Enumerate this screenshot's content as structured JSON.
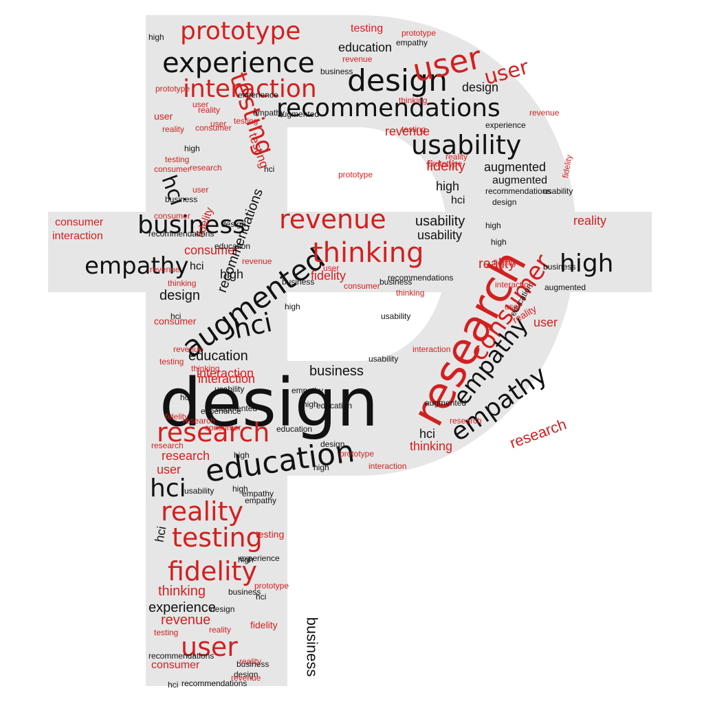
{
  "colors": {
    "shape": "#e6e6e6",
    "red": "#d22020",
    "black": "#111111",
    "background": "#ffffff"
  },
  "words": [
    {
      "text": "design",
      "color": "black"
    },
    {
      "text": "research",
      "color": "red"
    },
    {
      "text": "education",
      "color": "black"
    },
    {
      "text": "recommendations",
      "color": "black"
    },
    {
      "text": "augmented",
      "color": "black"
    },
    {
      "text": "prototype",
      "color": "red"
    },
    {
      "text": "experience",
      "color": "black"
    },
    {
      "text": "interaction",
      "color": "red"
    },
    {
      "text": "design",
      "color": "black"
    },
    {
      "text": "user",
      "color": "red"
    },
    {
      "text": "usability",
      "color": "black"
    },
    {
      "text": "business",
      "color": "black"
    },
    {
      "text": "revenue",
      "color": "red"
    },
    {
      "text": "thinking",
      "color": "red"
    },
    {
      "text": "empathy",
      "color": "black"
    },
    {
      "text": "high",
      "color": "black"
    },
    {
      "text": "consumer",
      "color": "red"
    },
    {
      "text": "empathy",
      "color": "black"
    },
    {
      "text": "hci",
      "color": "black"
    },
    {
      "text": "research",
      "color": "red"
    },
    {
      "text": "reality",
      "color": "red"
    },
    {
      "text": "testing",
      "color": "red"
    },
    {
      "text": "fidelity",
      "color": "red"
    },
    {
      "text": "user",
      "color": "red"
    },
    {
      "text": "hci",
      "color": "black"
    },
    {
      "text": "testing",
      "color": "red"
    },
    {
      "text": "hci",
      "color": "black"
    },
    {
      "text": "education",
      "color": "black"
    },
    {
      "text": "testing",
      "color": "red"
    },
    {
      "text": "augmented",
      "color": "black"
    },
    {
      "text": "fidelity",
      "color": "red"
    },
    {
      "text": "usability",
      "color": "black"
    },
    {
      "text": "research",
      "color": "red"
    },
    {
      "text": "reality",
      "color": "red"
    },
    {
      "text": "consumer",
      "color": "red"
    },
    {
      "text": "thinking",
      "color": "red"
    },
    {
      "text": "experience",
      "color": "black"
    },
    {
      "text": "revenue",
      "color": "red"
    },
    {
      "text": "business",
      "color": "black"
    },
    {
      "text": "interaction",
      "color": "red"
    },
    {
      "text": "consumer",
      "color": "red"
    },
    {
      "text": "interaction",
      "color": "red"
    },
    {
      "text": "usability",
      "color": "black"
    },
    {
      "text": "high",
      "color": "black"
    },
    {
      "text": "reality",
      "color": "red"
    },
    {
      "text": "user",
      "color": "red"
    },
    {
      "text": "design",
      "color": "black"
    },
    {
      "text": "fidelity",
      "color": "red"
    },
    {
      "text": "high",
      "color": "black"
    },
    {
      "text": "design",
      "color": "black"
    },
    {
      "text": "business",
      "color": "black"
    },
    {
      "text": "revenue",
      "color": "red"
    },
    {
      "text": "hci",
      "color": "black"
    },
    {
      "text": "education",
      "color": "black"
    },
    {
      "text": "high",
      "color": "black"
    },
    {
      "text": "hci",
      "color": "black"
    },
    {
      "text": "augmented",
      "color": "black"
    },
    {
      "text": "prototype",
      "color": "red"
    },
    {
      "text": "testing",
      "color": "red"
    },
    {
      "text": "education",
      "color": "black"
    },
    {
      "text": "experience",
      "color": "black"
    },
    {
      "text": "user",
      "color": "red"
    },
    {
      "text": "research",
      "color": "red"
    },
    {
      "text": "high",
      "color": "black"
    },
    {
      "text": "thinking",
      "color": "red"
    },
    {
      "text": "prototype",
      "color": "red"
    },
    {
      "text": "user",
      "color": "red"
    },
    {
      "text": "empathy",
      "color": "black"
    },
    {
      "text": "reality",
      "color": "red"
    },
    {
      "text": "hci",
      "color": "black"
    },
    {
      "text": "hci",
      "color": "black"
    },
    {
      "text": "business",
      "color": "black"
    },
    {
      "text": "interaction",
      "color": "red"
    },
    {
      "text": "fidelity",
      "color": "red"
    },
    {
      "text": "recommendations",
      "color": "black"
    },
    {
      "text": "user",
      "color": "red"
    },
    {
      "text": "consumer",
      "color": "red"
    },
    {
      "text": "business",
      "color": "black"
    },
    {
      "text": "reality",
      "color": "red"
    },
    {
      "text": "testing",
      "color": "red"
    },
    {
      "text": "design",
      "color": "black"
    },
    {
      "text": "hci",
      "color": "black"
    },
    {
      "text": "recommendations",
      "color": "black"
    },
    {
      "text": "high",
      "color": "black"
    },
    {
      "text": "empathy",
      "color": "black"
    },
    {
      "text": "usability",
      "color": "black"
    },
    {
      "text": "consumer",
      "color": "red"
    },
    {
      "text": "thinking",
      "color": "red"
    },
    {
      "text": "revenue",
      "color": "red"
    },
    {
      "text": "fidelity",
      "color": "red"
    },
    {
      "text": "user",
      "color": "red"
    },
    {
      "text": "research",
      "color": "red"
    },
    {
      "text": "high",
      "color": "black"
    },
    {
      "text": "empathy",
      "color": "black"
    },
    {
      "text": "testing",
      "color": "red"
    },
    {
      "text": "prototype",
      "color": "red"
    },
    {
      "text": "interaction",
      "color": "red"
    },
    {
      "text": "augmented",
      "color": "black"
    },
    {
      "text": "high",
      "color": "black"
    },
    {
      "text": "usability",
      "color": "black"
    },
    {
      "text": "business",
      "color": "black"
    },
    {
      "text": "recommendations",
      "color": "black"
    },
    {
      "text": "experience",
      "color": "black"
    },
    {
      "text": "design",
      "color": "black"
    },
    {
      "text": "high",
      "color": "black"
    },
    {
      "text": "testing",
      "color": "red"
    },
    {
      "text": "reality",
      "color": "red"
    },
    {
      "text": "consumer",
      "color": "red"
    },
    {
      "text": "user",
      "color": "red"
    },
    {
      "text": "revenue",
      "color": "red"
    },
    {
      "text": "prototype",
      "color": "red"
    },
    {
      "text": "fidelity",
      "color": "red"
    },
    {
      "text": "usability",
      "color": "black"
    },
    {
      "text": "augmented",
      "color": "black"
    },
    {
      "text": "high",
      "color": "black"
    },
    {
      "text": "hci",
      "color": "black"
    },
    {
      "text": "education",
      "color": "black"
    },
    {
      "text": "consumer",
      "color": "red"
    },
    {
      "text": "research",
      "color": "red"
    },
    {
      "text": "experience",
      "color": "black"
    },
    {
      "text": "revenue",
      "color": "red"
    },
    {
      "text": "testing",
      "color": "red"
    },
    {
      "text": "business",
      "color": "black"
    },
    {
      "text": "recommendations",
      "color": "black"
    },
    {
      "text": "empathy",
      "color": "black"
    },
    {
      "text": "reality",
      "color": "red"
    },
    {
      "text": "hci",
      "color": "black"
    },
    {
      "text": "user",
      "color": "red"
    },
    {
      "text": "design",
      "color": "black"
    },
    {
      "text": "high",
      "color": "black"
    },
    {
      "text": "business",
      "color": "black"
    },
    {
      "text": "consumer",
      "color": "red"
    },
    {
      "text": "revenue",
      "color": "red"
    },
    {
      "text": "fidelity",
      "color": "red"
    },
    {
      "text": "thinking",
      "color": "red"
    },
    {
      "text": "interaction",
      "color": "red"
    },
    {
      "text": "user",
      "color": "red"
    },
    {
      "text": "testing",
      "color": "red"
    },
    {
      "text": "high",
      "color": "black"
    },
    {
      "text": "reality",
      "color": "red"
    },
    {
      "text": "research",
      "color": "red"
    },
    {
      "text": "empathy",
      "color": "black"
    },
    {
      "text": "education",
      "color": "black"
    },
    {
      "text": "hci",
      "color": "black"
    },
    {
      "text": "business",
      "color": "black"
    },
    {
      "text": "recommendations",
      "color": "black"
    },
    {
      "text": "design",
      "color": "black"
    },
    {
      "text": "usability",
      "color": "black"
    },
    {
      "text": "augmented",
      "color": "black"
    },
    {
      "text": "prototype",
      "color": "red"
    },
    {
      "text": "consumer",
      "color": "red"
    },
    {
      "text": "thinking",
      "color": "red"
    },
    {
      "text": "revenue",
      "color": "red"
    },
    {
      "text": "experience",
      "color": "black"
    },
    {
      "text": "fidelity",
      "color": "red"
    },
    {
      "text": "high",
      "color": "black"
    },
    {
      "text": "user",
      "color": "red"
    },
    {
      "text": "hci",
      "color": "black"
    },
    {
      "text": "testing",
      "color": "red"
    },
    {
      "text": "reality",
      "color": "red"
    },
    {
      "text": "recommendations",
      "color": "black"
    },
    {
      "text": "empathy",
      "color": "black"
    },
    {
      "text": "business",
      "color": "black"
    },
    {
      "text": "design",
      "color": "black"
    },
    {
      "text": "interaction",
      "color": "red"
    },
    {
      "text": "research",
      "color": "red"
    },
    {
      "text": "education",
      "color": "black"
    },
    {
      "text": "prototype",
      "color": "red"
    },
    {
      "text": "augmented",
      "color": "black"
    },
    {
      "text": "consumer",
      "color": "red"
    },
    {
      "text": "usability",
      "color": "black"
    },
    {
      "text": "revenue",
      "color": "red"
    },
    {
      "text": "thinking",
      "color": "red"
    },
    {
      "text": "fidelity",
      "color": "red"
    },
    {
      "text": "experience",
      "color": "black"
    },
    {
      "text": "high",
      "color": "black"
    }
  ]
}
